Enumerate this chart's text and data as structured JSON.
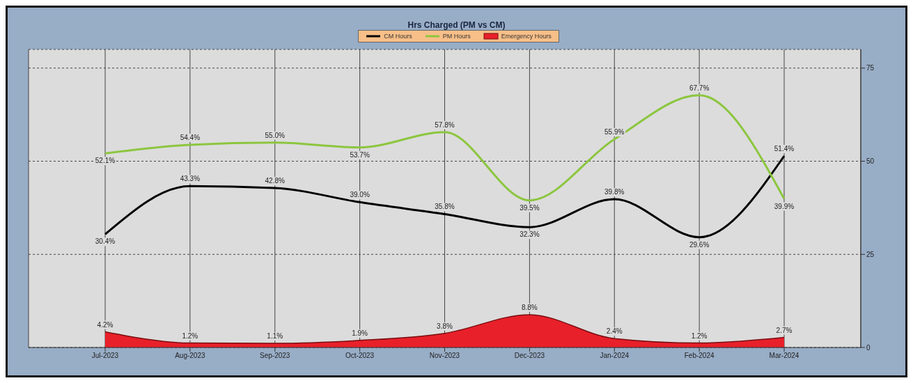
{
  "chart_data": {
    "type": "line",
    "title": "Hrs Charged (PM vs CM)",
    "categories": [
      "Jul-2023",
      "Aug-2023",
      "Sep-2023",
      "Oct-2023",
      "Nov-2023",
      "Dec-2023",
      "Jan-2024",
      "Feb-2024",
      "Mar-2024"
    ],
    "series": [
      {
        "name": "CM Hours",
        "color": "#000000",
        "values": [
          30.4,
          43.3,
          42.8,
          39.0,
          35.8,
          32.3,
          39.8,
          29.6,
          51.4
        ],
        "value_labels": [
          "30.4%",
          "43.3%",
          "42.8%",
          "39.0%",
          "35.8%",
          "32.3%",
          "39.8%",
          "29.6%",
          "51.4%"
        ]
      },
      {
        "name": "PM Hours",
        "color": "#8cc63f",
        "values": [
          52.1,
          54.4,
          55.0,
          53.7,
          57.8,
          39.5,
          55.9,
          67.7,
          39.9
        ],
        "value_labels": [
          "52.1%",
          "54.4%",
          "55.0%",
          "53.7%",
          "57.8%",
          "39.5%",
          "55.9%",
          "67.7%",
          "39.9%"
        ]
      },
      {
        "name": "Emergency Hours",
        "type": "area",
        "color": "#e8202a",
        "values": [
          4.2,
          1.2,
          1.1,
          1.9,
          3.8,
          8.8,
          2.4,
          1.2,
          2.7
        ],
        "value_labels": [
          "4.2%",
          "1.2%",
          "1.1%",
          "1.9%",
          "3.8%",
          "8.8%",
          "2.4%",
          "1.2%",
          "2.7%"
        ]
      }
    ],
    "ylim": [
      0,
      80
    ],
    "yticks": [
      0,
      25,
      50,
      75
    ],
    "grid": true,
    "legend": "top",
    "marker": "none",
    "line_style": "solid"
  }
}
